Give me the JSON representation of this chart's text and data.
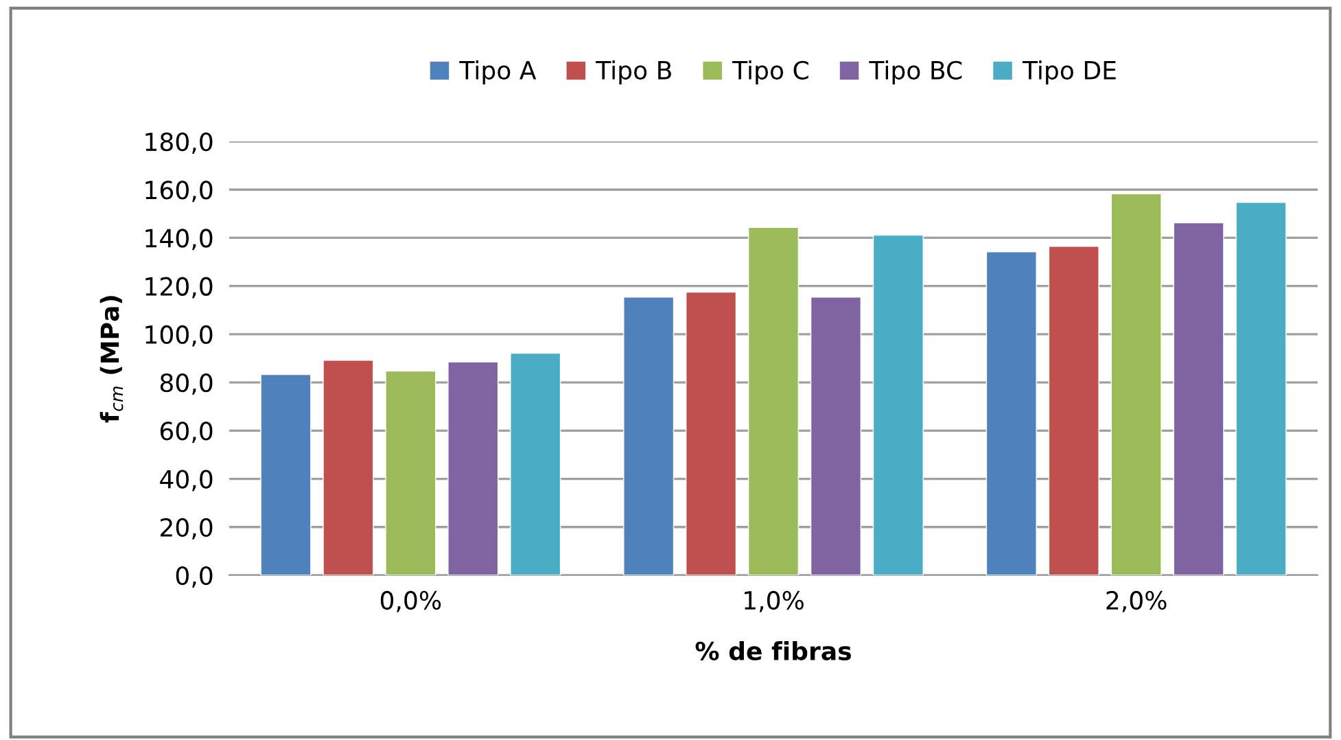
{
  "chart_data": {
    "type": "bar",
    "xlabel": "% de fibras",
    "ylabel": "f$_{cm}$ (MPa)",
    "categories": [
      "0,0%",
      "1,0%",
      "2,0%"
    ],
    "series": [
      {
        "name": "Tipo A",
        "color": "#4f81bd",
        "values": [
          83.3,
          115.4,
          134.2
        ]
      },
      {
        "name": "Tipo B",
        "color": "#c0504d",
        "values": [
          89.2,
          117.5,
          136.5
        ]
      },
      {
        "name": "Tipo C",
        "color": "#9bbb59",
        "values": [
          84.7,
          144.3,
          158.3
        ]
      },
      {
        "name": "Tipo BC",
        "color": "#8064a2",
        "values": [
          88.5,
          115.4,
          146.2
        ]
      },
      {
        "name": "Tipo DE",
        "color": "#4bacc6",
        "values": [
          92.1,
          141.1,
          154.7
        ]
      }
    ],
    "ylim": [
      0,
      180
    ],
    "yticks": [
      {
        "value": 0,
        "label": "0,0"
      },
      {
        "value": 20,
        "label": "20,0"
      },
      {
        "value": 40,
        "label": "40,0"
      },
      {
        "value": 60,
        "label": "60,0"
      },
      {
        "value": 80,
        "label": "80,0"
      },
      {
        "value": 100,
        "label": "100,0"
      },
      {
        "value": 120,
        "label": "120,0"
      },
      {
        "value": 140,
        "label": "140,0"
      },
      {
        "value": 160,
        "label": "160,0"
      },
      {
        "value": 180,
        "label": "180,0"
      }
    ],
    "grid": "y",
    "legend": "top"
  }
}
